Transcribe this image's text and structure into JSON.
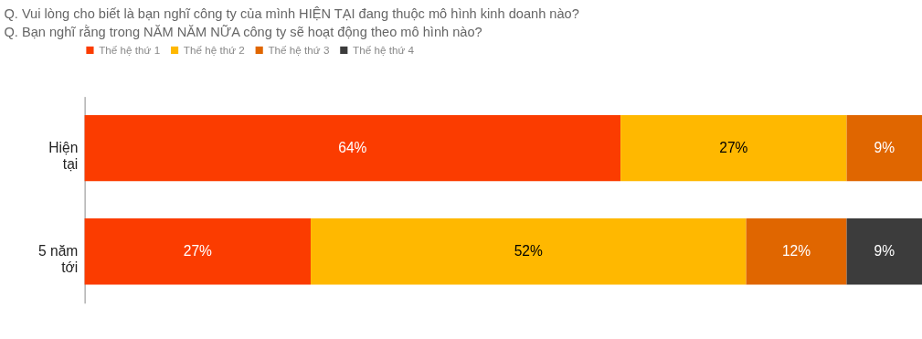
{
  "chart_data": {
    "type": "bar",
    "orientation": "horizontal",
    "stacked": true,
    "title": "Q. Vui lòng cho biết là bạn nghĩ công ty của mình HIỆN TẠI đang thuộc mô hình kinh doanh nào?",
    "subtitle": "Q. Bạn nghĩ rằng trong NĂM NĂM NỮA công ty sẽ hoạt động theo mô hình nào?",
    "categories": [
      "Hiện tại",
      "5 năm tới"
    ],
    "series": [
      {
        "name": "Thế hệ thứ 1",
        "color": "#fb3c00",
        "values": [
          64,
          27
        ],
        "value_labels": [
          "64%",
          "27%"
        ]
      },
      {
        "name": "Thế hệ thứ 2",
        "color": "#ffb800",
        "values": [
          27,
          52
        ],
        "value_labels": [
          "27%",
          "52%"
        ]
      },
      {
        "name": "Thế hệ thứ 3",
        "color": "#e06600",
        "values": [
          9,
          12
        ],
        "value_labels": [
          "9%",
          "12%"
        ]
      },
      {
        "name": "Thế hệ thứ 4",
        "color": "#3c3c3c",
        "values": [
          null,
          9
        ],
        "value_labels": [
          null,
          "9%"
        ]
      }
    ],
    "xlim": [
      0,
      100
    ],
    "tick_labels": "y",
    "legend": "top left"
  }
}
